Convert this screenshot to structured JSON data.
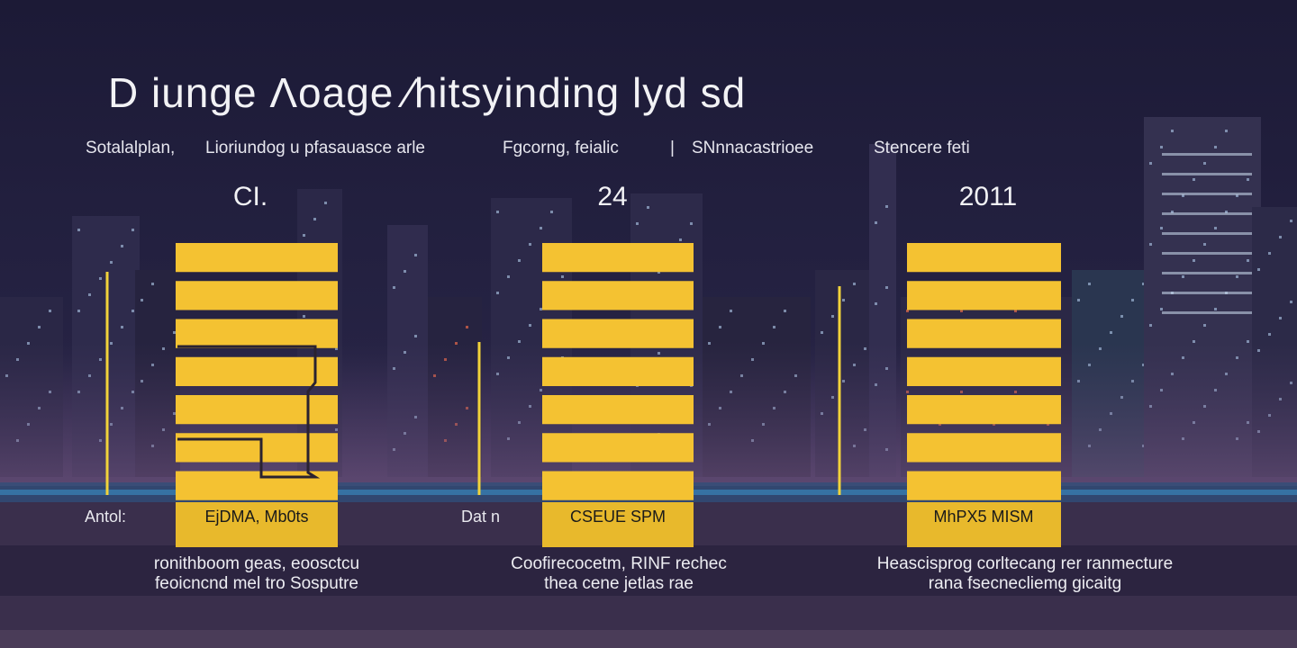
{
  "title": "D iungе Ʌoage ∕hitsyinding lyd sd",
  "subtitles": [
    "Sotalalplan,",
    "Lioriundog u pfasauasce arle",
    "Fgcorng, feialic",
    "|",
    "SNnnacastrioee",
    "Stencere feti"
  ],
  "colors": {
    "background": "#1e1b3a",
    "bar": "#f4c232",
    "bar_dark": "#b8901e",
    "accent_line": "#f2d33a",
    "water": "#3a8fc4"
  },
  "chart_data": {
    "type": "bar",
    "title": "D iungе Ʌoage ∕hitsyinding lyd sd",
    "categories": [
      "CI.",
      "24",
      "2011"
    ],
    "bar_labels": [
      "EjDMA, Mb0ts",
      "CSEUE SPM",
      "MhPX5 MISM"
    ],
    "axis_labels": [
      "Antol:",
      "Dat n",
      ""
    ],
    "series": [
      {
        "values": [
          8,
          8,
          8
        ]
      }
    ],
    "captions": [
      [
        "ronithboom geas, eoosctcu",
        "feoicncnd mel tro Sosputre"
      ],
      [
        "Coofirecocetm, RINF rechec",
        "thea cene jetlas rae"
      ],
      [
        "Heascisprog corltecang rer ranmecture",
        "rana fsecnecliemg gicaitg"
      ]
    ],
    "ylim": [
      0,
      8
    ],
    "grid": false
  }
}
